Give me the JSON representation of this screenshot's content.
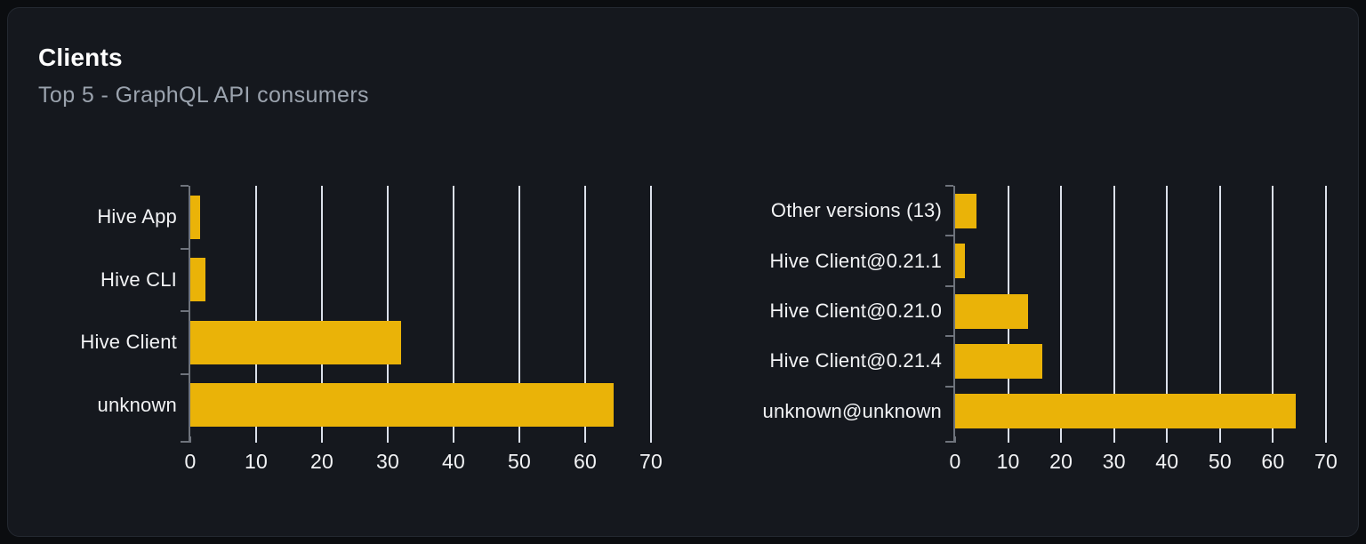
{
  "card": {
    "title": "Clients",
    "subtitle": "Top 5 - GraphQL API consumers"
  },
  "colors": {
    "page_bg": "#0b0d10",
    "card_bg": "#15181e",
    "card_border": "#242931",
    "bar": "#eab308",
    "gridline": "#dbe0ea",
    "axis": "#6e737c",
    "label": "#f2f3f5",
    "title": "#ffffff",
    "subtitle": "#9ba3ae"
  },
  "chart_data": [
    {
      "type": "bar",
      "orientation": "horizontal",
      "title": "",
      "categories": [
        "Hive App",
        "Hive CLI",
        "Hive Client",
        "unknown"
      ],
      "values": [
        1.5,
        2.3,
        32,
        64.3
      ],
      "xticks": [
        0,
        10,
        20,
        30,
        40,
        50,
        60,
        70
      ],
      "xlim": [
        0,
        70
      ],
      "xlabel": "",
      "ylabel": "",
      "grid": true,
      "legend": false
    },
    {
      "type": "bar",
      "orientation": "horizontal",
      "title": "",
      "categories": [
        "Other versions (13)",
        "Hive Client@0.21.1",
        "Hive Client@0.21.0",
        "Hive Client@0.21.4",
        "unknown@unknown"
      ],
      "values": [
        4,
        1.8,
        13.7,
        16.5,
        64.3
      ],
      "xticks": [
        0,
        10,
        20,
        30,
        40,
        50,
        60,
        70
      ],
      "xlim": [
        0,
        70
      ],
      "xlabel": "",
      "ylabel": "",
      "grid": true,
      "legend": false
    }
  ]
}
